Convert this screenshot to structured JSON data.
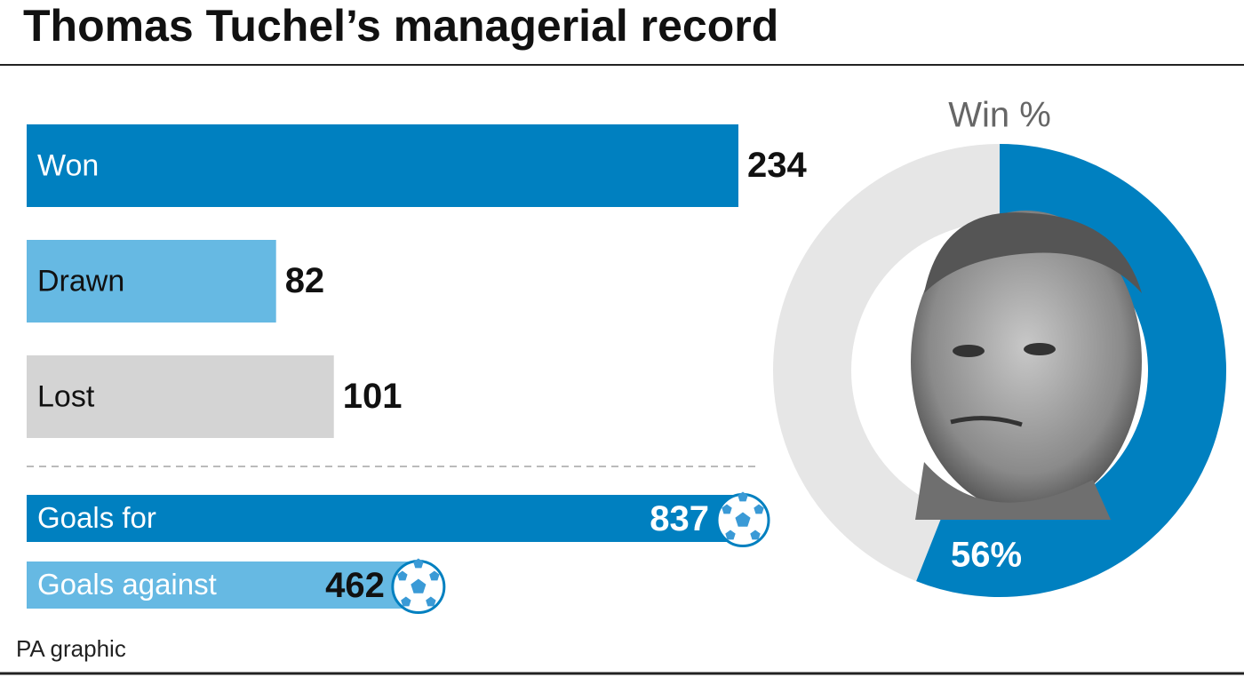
{
  "title": "Thomas Tuchel’s managerial record",
  "source": "PA graphic",
  "chart_data": [
    {
      "type": "bar",
      "categories": [
        "Won",
        "Drawn",
        "Lost"
      ],
      "values": [
        234,
        82,
        101
      ],
      "colors": [
        "#0080c0",
        "#66b9e3",
        "#d4d4d4"
      ]
    },
    {
      "type": "bar",
      "categories": [
        "Goals for",
        "Goals against"
      ],
      "values": [
        837,
        462
      ],
      "colors": [
        "#0080c0",
        "#66b9e3"
      ]
    },
    {
      "type": "pie",
      "title": "Win %",
      "values": [
        56
      ],
      "value_labels": [
        "56%"
      ],
      "color": "#0080c0"
    }
  ]
}
